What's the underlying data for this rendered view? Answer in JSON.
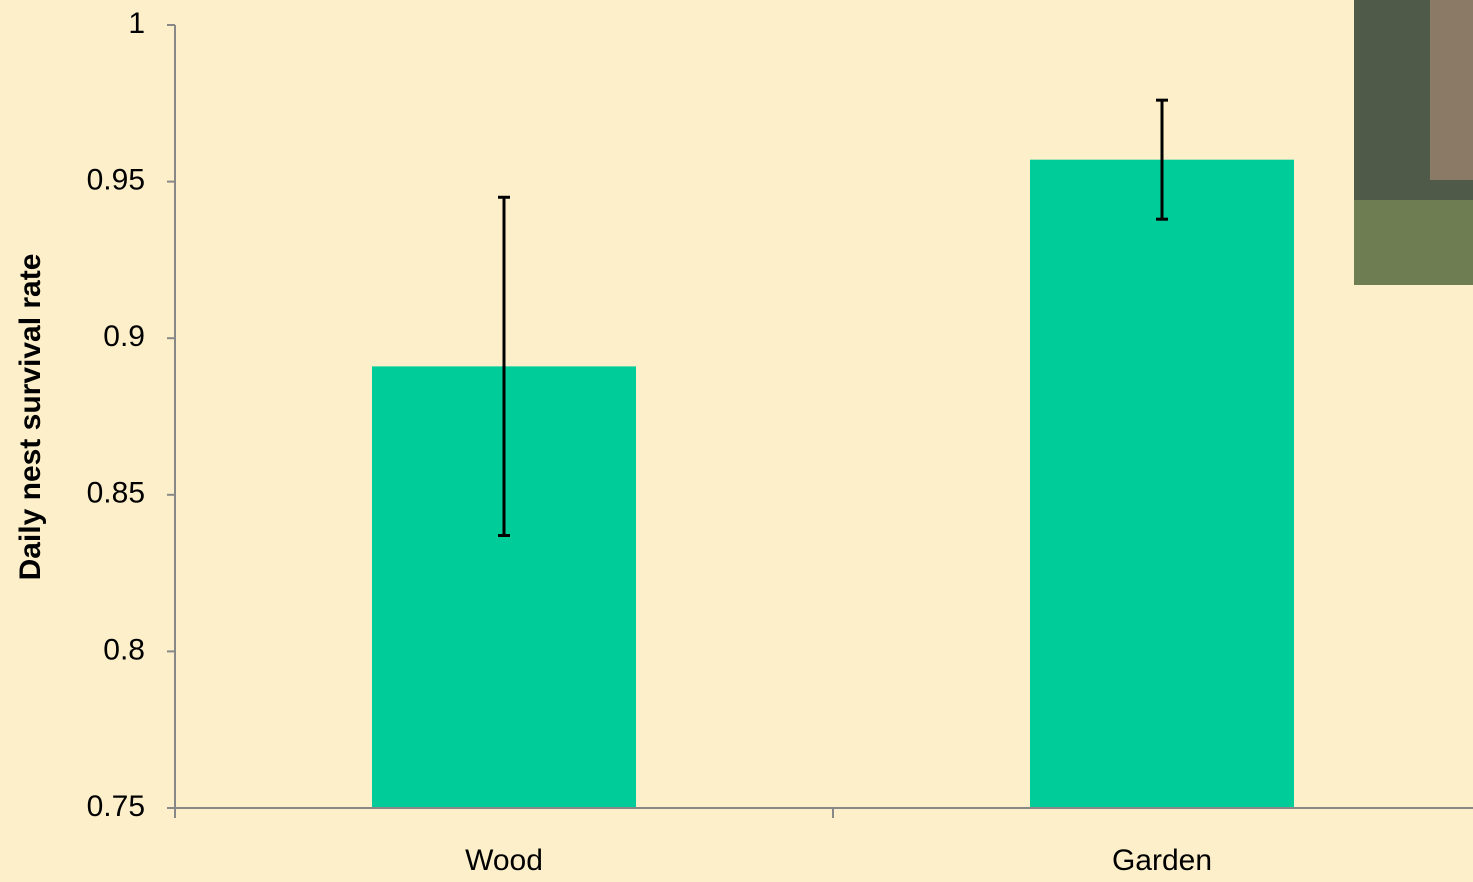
{
  "chart_data": {
    "type": "bar",
    "y_label": "Daily nest survival rate",
    "categories": [
      "Wood",
      "Garden"
    ],
    "values": [
      0.891,
      0.957
    ],
    "errors": [
      0.054,
      0.019
    ],
    "color": "#00cc99",
    "ylim": [
      0.75,
      1
    ],
    "yticks": [
      0.75,
      0.8,
      0.85,
      0.9,
      0.95,
      1
    ]
  }
}
